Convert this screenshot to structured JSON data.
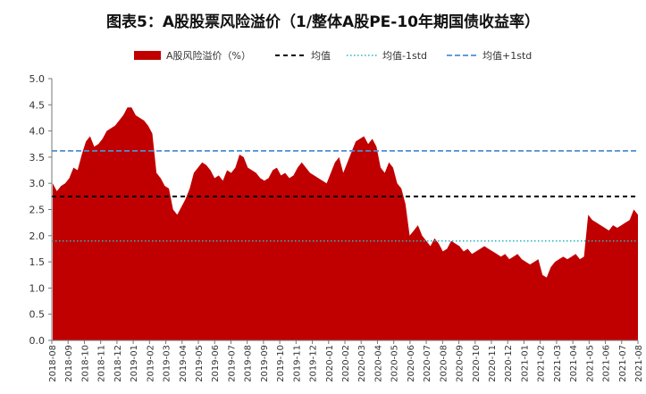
{
  "chart_data": {
    "type": "area",
    "title": "图表5：A股股票风险溢价（1/整体A股PE-10年期国债收益率）",
    "ylim": [
      0,
      5
    ],
    "yticks": [
      "0.0",
      "0.5",
      "1.0",
      "1.5",
      "2.0",
      "2.5",
      "3.0",
      "3.5",
      "4.0",
      "4.5",
      "5.0"
    ],
    "grid": false,
    "legend_position": "top",
    "colors": {
      "area": "#c00000",
      "mean": "#000000",
      "mean_minus_std": "#2bb3c0",
      "mean_plus_std": "#4a8fd6"
    },
    "x_tick_labels": [
      "2018-08",
      "2018-09",
      "2018-10",
      "2018-11",
      "2018-12",
      "2019-01",
      "2019-02",
      "2019-03",
      "2019-04",
      "2019-05",
      "2019-06",
      "2019-07",
      "2019-08",
      "2019-09",
      "2019-10",
      "2019-11",
      "2019-12",
      "2020-01",
      "2020-02",
      "2020-03",
      "2020-04",
      "2020-05",
      "2020-06",
      "2020-07",
      "2020-08",
      "2020-09",
      "2020-10",
      "2020-11",
      "2020-12",
      "2021-01",
      "2021-02",
      "2021-03",
      "2021-04",
      "2021-05",
      "2021-06",
      "2021-07",
      "2021-08"
    ],
    "series": [
      {
        "name": "A股风险溢价（%）",
        "style": "area",
        "values": [
          3.0,
          2.85,
          2.95,
          3.0,
          3.1,
          3.3,
          3.25,
          3.55,
          3.8,
          3.9,
          3.7,
          3.75,
          3.85,
          4.0,
          4.05,
          4.1,
          4.2,
          4.3,
          4.45,
          4.45,
          4.3,
          4.25,
          4.2,
          4.1,
          3.95,
          3.2,
          3.1,
          2.95,
          2.9,
          2.5,
          2.4,
          2.55,
          2.7,
          2.9,
          3.2,
          3.3,
          3.4,
          3.35,
          3.25,
          3.1,
          3.15,
          3.05,
          3.25,
          3.2,
          3.3,
          3.55,
          3.5,
          3.3,
          3.25,
          3.2,
          3.1,
          3.05,
          3.1,
          3.25,
          3.3,
          3.15,
          3.2,
          3.1,
          3.15,
          3.3,
          3.4,
          3.3,
          3.2,
          3.15,
          3.1,
          3.05,
          3.0,
          3.2,
          3.4,
          3.5,
          3.2,
          3.4,
          3.6,
          3.8,
          3.85,
          3.9,
          3.75,
          3.85,
          3.7,
          3.3,
          3.2,
          3.4,
          3.3,
          3.0,
          2.9,
          2.6,
          2.0,
          2.1,
          2.2,
          2.0,
          1.9,
          1.8,
          1.95,
          1.85,
          1.7,
          1.75,
          1.9,
          1.85,
          1.8,
          1.7,
          1.75,
          1.65,
          1.7,
          1.75,
          1.8,
          1.75,
          1.7,
          1.65,
          1.6,
          1.65,
          1.55,
          1.6,
          1.65,
          1.55,
          1.5,
          1.45,
          1.5,
          1.55,
          1.25,
          1.2,
          1.4,
          1.5,
          1.55,
          1.6,
          1.55,
          1.6,
          1.65,
          1.55,
          1.6,
          2.4,
          2.3,
          2.25,
          2.2,
          2.15,
          2.1,
          2.2,
          2.15,
          2.2,
          2.25,
          2.3,
          2.5,
          2.4
        ]
      },
      {
        "name": "均值",
        "style": "dashed",
        "value": 2.75
      },
      {
        "name": "均值-1std",
        "style": "dotted",
        "value": 1.9
      },
      {
        "name": "均值+1std",
        "style": "dashed",
        "value": 3.62
      }
    ]
  }
}
